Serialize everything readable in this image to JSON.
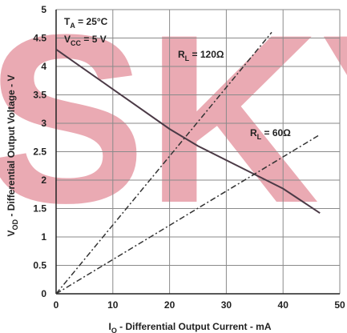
{
  "chart_data": {
    "type": "line",
    "watermark": "SKY",
    "x_label": {
      "base": "I",
      "sub": "O",
      "rest": " - Differential Output Current - mA"
    },
    "y_label": {
      "base": "V",
      "sub": "OD",
      "rest": " - Differential Output Voltage - V"
    },
    "annotations": [
      {
        "base": "T",
        "sub": "A",
        "rest": " = 25°C"
      },
      {
        "base": "V",
        "sub": "CC",
        "rest": " = 5 V"
      },
      {
        "base": "R",
        "sub": "L",
        "rest": " = 120Ω"
      },
      {
        "base": "R",
        "sub": "L",
        "rest": " = 60Ω"
      }
    ],
    "series": [
      {
        "color": "#4b3a46",
        "dash": false,
        "x": [
          0,
          10,
          20,
          25,
          30,
          35,
          40,
          46.5
        ],
        "values": [
          4.3,
          3.6,
          2.9,
          2.6,
          2.35,
          2.1,
          1.85,
          1.42
        ]
      },
      {
        "color": "#333333",
        "dash": true,
        "x": [
          0,
          38
        ],
        "values": [
          0,
          4.6
        ]
      },
      {
        "color": "#333333",
        "dash": true,
        "x": [
          0,
          46.5
        ],
        "values": [
          0,
          2.8
        ]
      }
    ],
    "xlim": [
      0,
      50
    ],
    "xticks": [
      0,
      10,
      20,
      30,
      40,
      50
    ],
    "ylim": [
      0,
      5
    ],
    "yticks": [
      0,
      0.5,
      1,
      1.5,
      2,
      2.5,
      3,
      3.5,
      4,
      4.5,
      5
    ],
    "grid": true
  }
}
